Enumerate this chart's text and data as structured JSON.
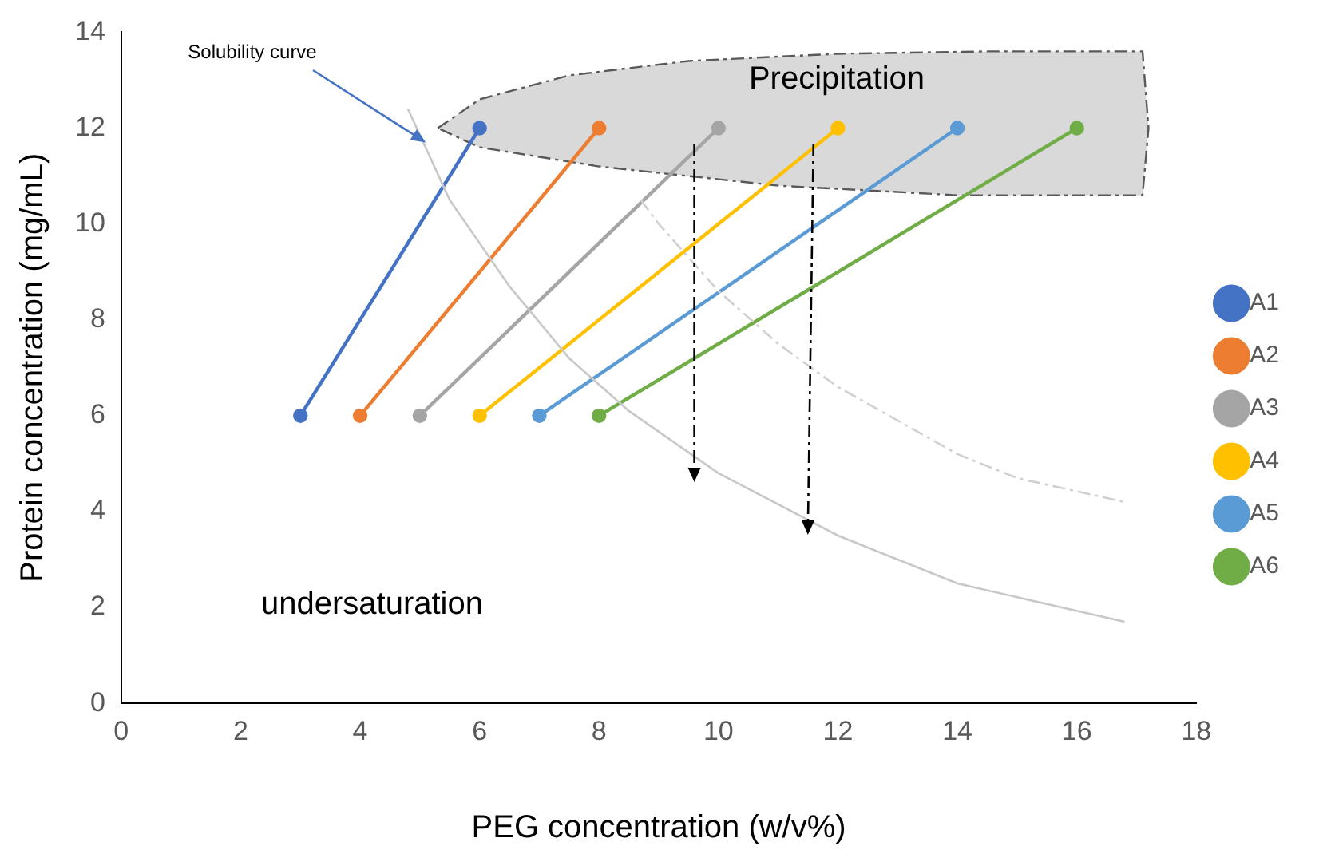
{
  "chart_data": {
    "type": "line",
    "xlabel": "PEG concentration (w/v%)",
    "ylabel": "Protein concentration (mg/mL)",
    "xlim": [
      0,
      18
    ],
    "xticks": [
      0,
      2,
      4,
      6,
      8,
      10,
      12,
      14,
      16,
      18
    ],
    "ylim": [
      0,
      14
    ],
    "yticks": [
      0,
      2,
      4,
      6,
      8,
      10,
      12,
      14
    ],
    "grid": false,
    "legend": "right",
    "marker": "circle",
    "series": [
      {
        "type": "area",
        "color": "#d9d9d9",
        "line_style": "dashdot",
        "marker": "none",
        "x": [
          5.3,
          6,
          7.5,
          9.5,
          12,
          14.5,
          17.1,
          17.2,
          17.1,
          14,
          11,
          8,
          6,
          5.3
        ],
        "values": [
          12.0,
          12.6,
          13.1,
          13.4,
          13.55,
          13.6,
          13.6,
          12,
          10.6,
          10.6,
          10.8,
          11.2,
          11.6,
          12.0
        ]
      },
      {
        "type": "line",
        "color": "#c8c8c8",
        "line_style": "solid",
        "marker": "none",
        "x": [
          4.8,
          5.5,
          6.5,
          7.5,
          8.5,
          10,
          12,
          14,
          16.8
        ],
        "values": [
          12.4,
          10.5,
          8.7,
          7.2,
          6.1,
          4.8,
          3.5,
          2.5,
          1.7
        ]
      },
      {
        "type": "line",
        "color": "#d0d0d0",
        "line_style": "dashdot",
        "marker": "none",
        "x": [
          8.7,
          9,
          10,
          11,
          12,
          13,
          14,
          15,
          16.8
        ],
        "values": [
          10.5,
          10,
          8.6,
          7.5,
          6.6,
          5.9,
          5.2,
          4.7,
          4.2
        ]
      },
      {
        "name": "A1",
        "color": "#4472c4",
        "x": [
          3,
          6
        ],
        "values": [
          6,
          12
        ]
      },
      {
        "name": "A2",
        "color": "#ed7d31",
        "x": [
          4,
          8
        ],
        "values": [
          6,
          12
        ]
      },
      {
        "name": "A3",
        "color": "#a5a5a5",
        "x": [
          5,
          10
        ],
        "values": [
          6,
          12
        ]
      },
      {
        "name": "A4",
        "color": "#ffc000",
        "x": [
          6,
          12
        ],
        "values": [
          6,
          12
        ]
      },
      {
        "name": "A5",
        "color": "#5b9bd5",
        "x": [
          7,
          14
        ],
        "values": [
          6,
          12
        ]
      },
      {
        "name": "A6",
        "color": "#70ad47",
        "x": [
          8,
          16
        ],
        "values": [
          6,
          12
        ]
      }
    ],
    "annotations": [
      {
        "text": "Solubility curve",
        "x": 5.1,
        "y": 11.7
      },
      "Precipitation",
      "undersaturation"
    ]
  }
}
